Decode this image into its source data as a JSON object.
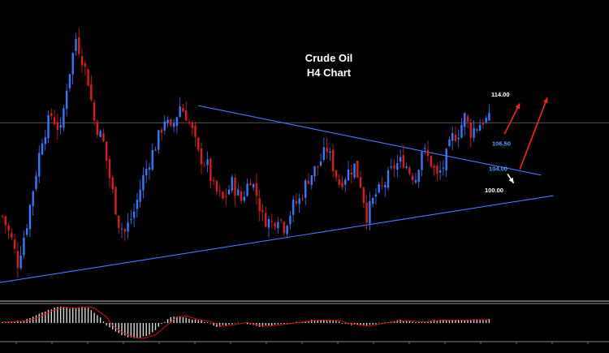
{
  "chart_data": {
    "type": "candlestick",
    "title": "Crude Oil",
    "subtitle": "H4 Chart",
    "ylim": [
      93.5,
      118
    ],
    "candle_count": 160,
    "close_path": [
      [
        0,
        99.6
      ],
      [
        3,
        97.5
      ],
      [
        5,
        95.5
      ],
      [
        8,
        99.0
      ],
      [
        11,
        103.5
      ],
      [
        13,
        106.5
      ],
      [
        16,
        108.5
      ],
      [
        19,
        107.0
      ],
      [
        21,
        111.0
      ],
      [
        24,
        115.2
      ],
      [
        26,
        113.5
      ],
      [
        28,
        111.5
      ],
      [
        30,
        108.0
      ],
      [
        33,
        106.0
      ],
      [
        35,
        103.0
      ],
      [
        38,
        99.0
      ],
      [
        40,
        98.2
      ],
      [
        43,
        100.0
      ],
      [
        46,
        103.0
      ],
      [
        48,
        104.5
      ],
      [
        51,
        106.5
      ],
      [
        53,
        108.2
      ],
      [
        55,
        107.0
      ],
      [
        58,
        109.3
      ],
      [
        60,
        108.5
      ],
      [
        62,
        107.0
      ],
      [
        64,
        105.0
      ],
      [
        67,
        104.0
      ],
      [
        69,
        102.0
      ],
      [
        72,
        101.0
      ],
      [
        75,
        102.5
      ],
      [
        78,
        101.0
      ],
      [
        81,
        103.0
      ],
      [
        83,
        101.5
      ],
      [
        85,
        99.5
      ],
      [
        88,
        99.0
      ],
      [
        90,
        99.7
      ],
      [
        92,
        98.7
      ],
      [
        95,
        100.5
      ],
      [
        97,
        101.0
      ],
      [
        100,
        103.0
      ],
      [
        103,
        104.0
      ],
      [
        106,
        105.5
      ],
      [
        108,
        104.0
      ],
      [
        110,
        102.5
      ],
      [
        113,
        103.5
      ],
      [
        115,
        104.0
      ],
      [
        117,
        102.5
      ],
      [
        119,
        99.7
      ],
      [
        122,
        101.5
      ],
      [
        124,
        102.0
      ],
      [
        126,
        103.0
      ],
      [
        128,
        104.0
      ],
      [
        131,
        104.5
      ],
      [
        133,
        103.5
      ],
      [
        135,
        103.0
      ],
      [
        137,
        105.5
      ],
      [
        140,
        104.3
      ],
      [
        142,
        103.0
      ],
      [
        144,
        104.0
      ],
      [
        147,
        106.5
      ],
      [
        149,
        107.0
      ],
      [
        151,
        108.3
      ],
      [
        153,
        107.0
      ],
      [
        155,
        107.5
      ],
      [
        157,
        108.0
      ]
    ],
    "trendlines": [
      {
        "name": "descending resistance",
        "from": [
          64,
          109.3
        ],
        "to": [
          176,
          103.2
        ],
        "color": "#4a78ff"
      },
      {
        "name": "ascending support",
        "from": [
          -5,
          93.6
        ],
        "to": [
          180,
          101.4
        ],
        "color": "#4a78ff"
      }
    ],
    "horizontal_line": {
      "y": 107.8,
      "color": "#6e6e6e"
    },
    "levels": [
      {
        "label": "114.00",
        "y": 110.3,
        "color": "#ffffff"
      },
      {
        "label": "106.50",
        "y": 106.0,
        "color": "#4da3ff"
      },
      {
        "label": "104.00",
        "y": 103.8,
        "color": "#4da3ff"
      },
      {
        "label": "100.00",
        "y": 101.9,
        "color": "#ffffff"
      }
    ],
    "arrows": [
      {
        "from": [
          164,
          106.8
        ],
        "to": [
          169,
          109.5
        ],
        "color": "#ff2020"
      },
      {
        "from": [
          169,
          103.7
        ],
        "to": [
          178,
          110.0
        ],
        "color": "#ff2020"
      },
      {
        "from": [
          165,
          103.3
        ],
        "to": [
          167,
          102.5
        ],
        "color": "#ffffff"
      }
    ],
    "indicator": {
      "type": "MACD histogram",
      "bar_color": "#d8d8d8",
      "signal_color": "#d01010",
      "histogram_path": [
        [
          0,
          0.2
        ],
        [
          6,
          0.4
        ],
        [
          10,
          1.2
        ],
        [
          14,
          2.4
        ],
        [
          18,
          3.2
        ],
        [
          22,
          3.0
        ],
        [
          26,
          3.3
        ],
        [
          28,
          3.0
        ],
        [
          32,
          1.2
        ],
        [
          34,
          -0.5
        ],
        [
          37,
          -1.8
        ],
        [
          41,
          -2.9
        ],
        [
          44,
          -3.1
        ],
        [
          48,
          -2.4
        ],
        [
          52,
          -0.3
        ],
        [
          55,
          1.2
        ],
        [
          58,
          1.4
        ],
        [
          62,
          0.7
        ],
        [
          66,
          0.3
        ],
        [
          70,
          -0.7
        ],
        [
          74,
          -0.3
        ],
        [
          78,
          0.1
        ],
        [
          84,
          -0.7
        ],
        [
          90,
          -0.3
        ],
        [
          96,
          0.2
        ],
        [
          102,
          0.6
        ],
        [
          108,
          0.5
        ],
        [
          112,
          -0.2
        ],
        [
          118,
          -0.6
        ],
        [
          124,
          0.1
        ],
        [
          130,
          0.5
        ],
        [
          136,
          0.2
        ],
        [
          142,
          0.6
        ],
        [
          150,
          0.6
        ],
        [
          159,
          0.7
        ]
      ],
      "ylim": [
        -3.6,
        3.6
      ]
    }
  }
}
